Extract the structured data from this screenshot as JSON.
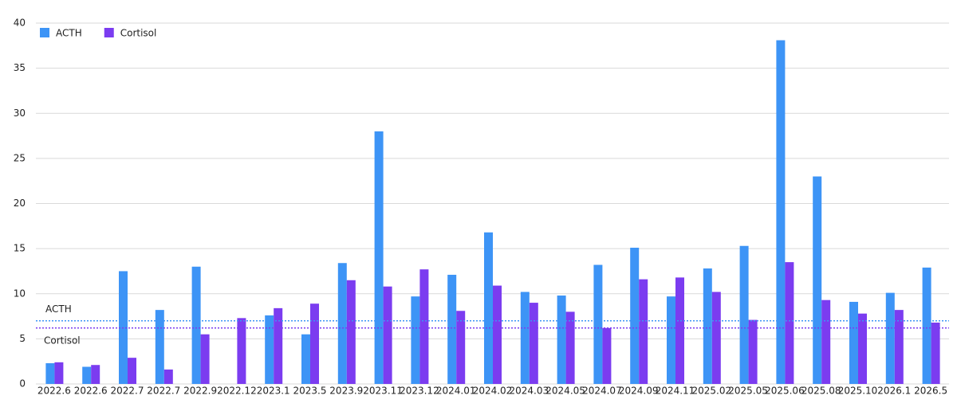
{
  "chart_data": {
    "type": "bar",
    "categories": [
      "2022.6",
      "2022.6",
      "2022.7",
      "2022.7",
      "2022.9",
      "2022.12",
      "2023.1",
      "2023.5",
      "2023.9",
      "2023.11",
      "2023.12",
      "2024.01",
      "2024.02",
      "2024.03",
      "2024.05",
      "2024.07",
      "2024.09",
      "2024.11",
      "2025.02",
      "2025.05",
      "2025.06",
      "2025.08",
      "2025.10",
      "2026.1",
      "2026.5"
    ],
    "series": [
      {
        "name": "ACTH",
        "color": "#3d94f6",
        "values": [
          2.3,
          1.9,
          12.5,
          8.2,
          13.0,
          null,
          7.6,
          5.5,
          13.4,
          28.0,
          9.7,
          12.1,
          16.8,
          10.2,
          9.8,
          13.2,
          15.1,
          9.7,
          12.8,
          15.3,
          38.1,
          23.0,
          9.1,
          10.1,
          12.9
        ]
      },
      {
        "name": "Cortisol",
        "color": "#7b3cf0",
        "values": [
          2.4,
          2.1,
          2.9,
          1.6,
          5.5,
          7.3,
          8.4,
          8.9,
          11.5,
          10.8,
          12.7,
          8.1,
          10.9,
          9.0,
          8.0,
          6.2,
          11.6,
          11.8,
          10.2,
          7.1,
          13.5,
          9.3,
          7.8,
          8.2,
          6.8
        ]
      }
    ],
    "reference_lines": [
      {
        "label": "ACTH",
        "value": 7.0,
        "color": "#3d94f6"
      },
      {
        "label": "Cortisol",
        "value": 6.2,
        "color": "#7b3cf0"
      }
    ],
    "ylim": [
      0,
      40
    ],
    "yticks": [
      0,
      5,
      10,
      15,
      20,
      25,
      30,
      35,
      40
    ],
    "grid": true,
    "legend": "top-left"
  }
}
